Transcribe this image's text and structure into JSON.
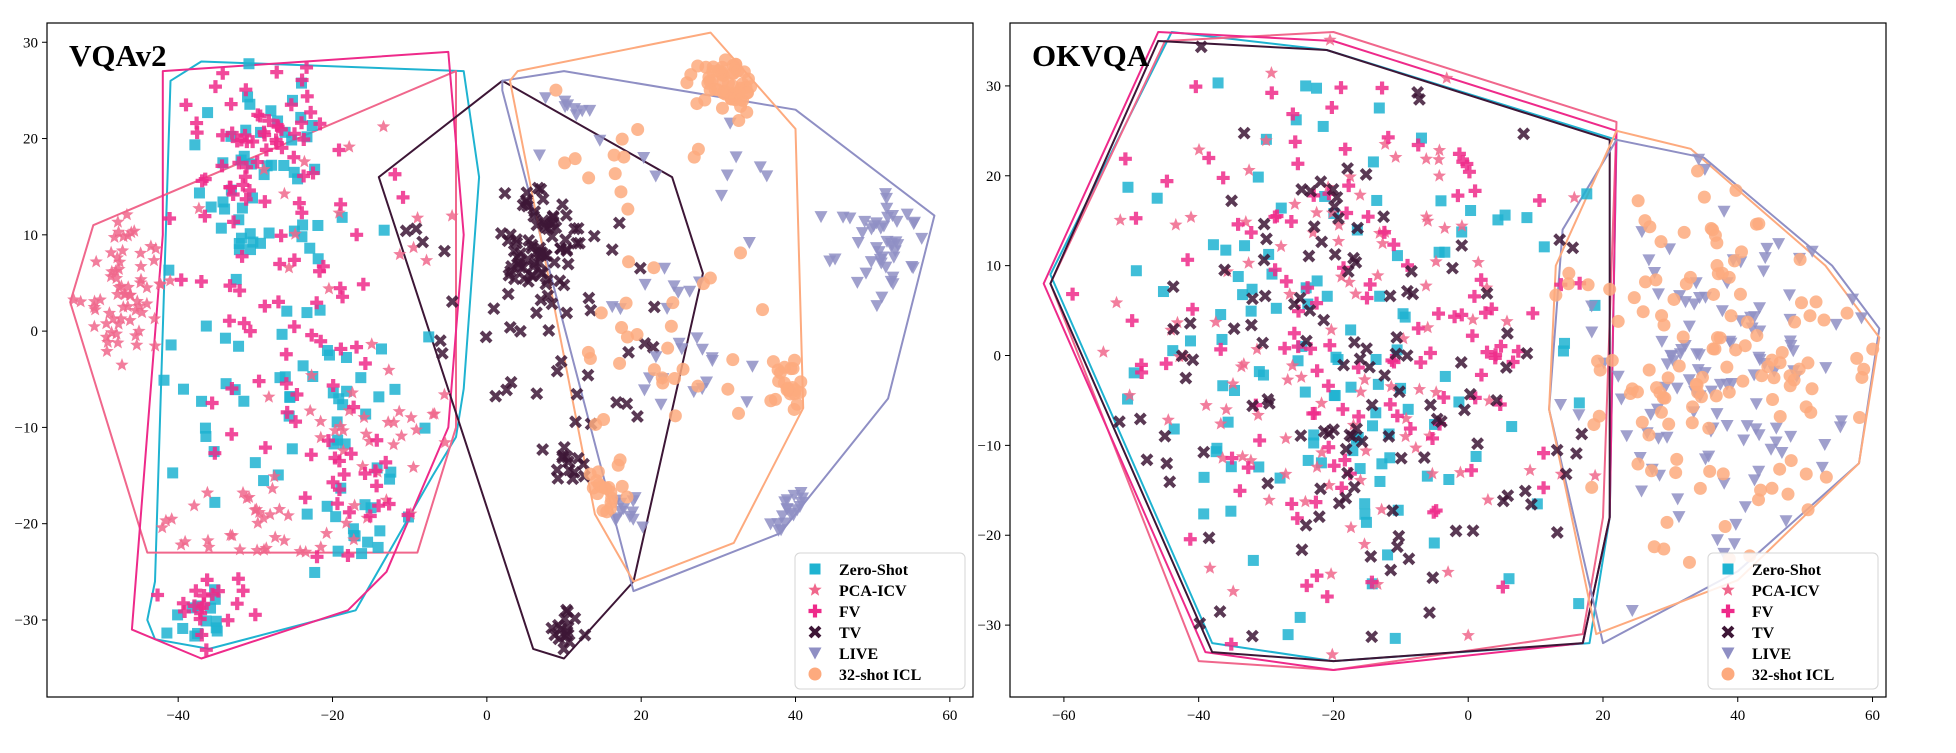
{
  "series_styles": [
    {
      "key": "zs",
      "color": "#1FB3D1",
      "marker": "square"
    },
    {
      "key": "pca",
      "color": "#F0678C",
      "marker": "star"
    },
    {
      "key": "fv",
      "color": "#EE2A8A",
      "marker": "plus"
    },
    {
      "key": "tv",
      "color": "#3D1636",
      "marker": "x"
    },
    {
      "key": "live",
      "color": "#8F8FC4",
      "marker": "triangle-down"
    },
    {
      "key": "icl",
      "color": "#FDAA7E",
      "marker": "circle"
    }
  ],
  "chart_data": [
    {
      "type": "scatter",
      "title": "VQAv2",
      "xlim": [
        -57,
        63
      ],
      "ylim": [
        -38,
        32
      ],
      "xticks": [
        -40,
        -20,
        0,
        20,
        40,
        60
      ],
      "yticks": [
        -30,
        -20,
        -10,
        0,
        10,
        20,
        30
      ],
      "legend_position": "bottom-right",
      "series": [
        {
          "name": "Zero-Shot",
          "hull": [
            [
              -41,
              26
            ],
            [
              -37,
              28
            ],
            [
              -3,
              27
            ],
            [
              -1,
              16
            ],
            [
              -3,
              -6
            ],
            [
              -4,
              -11
            ],
            [
              -7,
              -15
            ],
            [
              -17,
              -29
            ],
            [
              -36,
              -33
            ],
            [
              -43,
              -32
            ],
            [
              -44,
              -30
            ],
            [
              -43,
              -26
            ]
          ],
          "clusters": [
            {
              "c": [
                -28,
                15
              ],
              "r": [
                10,
                11
              ],
              "n": 55
            },
            {
              "c": [
                -25,
                -8
              ],
              "r": [
                17,
                12
              ],
              "n": 55
            },
            {
              "c": [
                -38,
                -30
              ],
              "r": [
                4,
                3
              ],
              "n": 14
            },
            {
              "c": [
                -18,
                -20
              ],
              "r": [
                6,
                4
              ],
              "n": 12
            }
          ]
        },
        {
          "name": "PCA-ICV",
          "hull": [
            [
              -51,
              11
            ],
            [
              -4,
              27
            ],
            [
              -4,
              -10
            ],
            [
              -9,
              -23
            ],
            [
              -44,
              -23
            ],
            [
              -54,
              3
            ]
          ],
          "clusters": [
            {
              "c": [
                -47,
                4
              ],
              "r": [
                6,
                7
              ],
              "n": 70
            },
            {
              "c": [
                -30,
                -20
              ],
              "r": [
                12,
                4
              ],
              "n": 35
            },
            {
              "c": [
                -14,
                -10
              ],
              "r": [
                12,
                8
              ],
              "n": 35
            },
            {
              "c": [
                -20,
                12
              ],
              "r": [
                16,
                12
              ],
              "n": 14
            }
          ]
        },
        {
          "name": "FV",
          "hull": [
            [
              -42,
              27
            ],
            [
              -5,
              29
            ],
            [
              -3,
              10
            ],
            [
              -5,
              -10
            ],
            [
              -13,
              -25
            ],
            [
              -18,
              -29
            ],
            [
              -37,
              -34
            ],
            [
              -46,
              -31
            ],
            [
              -42,
              10
            ]
          ],
          "clusters": [
            {
              "c": [
                -30,
                20
              ],
              "r": [
                8,
                8
              ],
              "n": 50
            },
            {
              "c": [
                -25,
                0
              ],
              "r": [
                14,
                16
              ],
              "n": 55
            },
            {
              "c": [
                -17,
                -17
              ],
              "r": [
                6,
                5
              ],
              "n": 18
            },
            {
              "c": [
                -36,
                -29
              ],
              "r": [
                5,
                4
              ],
              "n": 20
            }
          ]
        },
        {
          "name": "TV",
          "hull": [
            [
              2,
              26
            ],
            [
              24,
              16
            ],
            [
              28,
              6
            ],
            [
              19,
              -26
            ],
            [
              10,
              -34
            ],
            [
              6,
              -33
            ],
            [
              -14,
              16
            ]
          ],
          "clusters": [
            {
              "c": [
                7,
                9
              ],
              "r": [
                5,
                6
              ],
              "n": 75
            },
            {
              "c": [
                9,
                -2
              ],
              "r": [
                14,
                12
              ],
              "n": 35
            },
            {
              "c": [
                10,
                -14
              ],
              "r": [
                2,
                2
              ],
              "n": 14
            },
            {
              "c": [
                10,
                -32
              ],
              "r": [
                3,
                2
              ],
              "n": 16
            },
            {
              "c": [
                -8,
                4
              ],
              "r": [
                6,
                10
              ],
              "n": 6
            }
          ]
        },
        {
          "name": "LIVE",
          "hull": [
            [
              2,
              26
            ],
            [
              10,
              27
            ],
            [
              40,
              23
            ],
            [
              58,
              12
            ],
            [
              52,
              -7
            ],
            [
              38,
              -21
            ],
            [
              19,
              -27
            ],
            [
              2,
              25
            ]
          ],
          "clusters": [
            {
              "c": [
                52,
                9
              ],
              "r": [
                5,
                4
              ],
              "n": 45
            },
            {
              "c": [
                40,
                -20
              ],
              "r": [
                3,
                2
              ],
              "n": 18
            },
            {
              "c": [
                25,
                -1
              ],
              "r": [
                12,
                8
              ],
              "n": 25
            },
            {
              "c": [
                17,
                -19
              ],
              "r": [
                3,
                2
              ],
              "n": 12
            },
            {
              "c": [
                10,
                23
              ],
              "r": [
                6,
                4
              ],
              "n": 10
            },
            {
              "c": [
                30,
                15
              ],
              "r": [
                12,
                6
              ],
              "n": 10
            }
          ]
        },
        {
          "name": "32-shot ICL",
          "hull": [
            [
              4,
              27
            ],
            [
              29,
              31
            ],
            [
              40,
              21
            ],
            [
              41,
              -8
            ],
            [
              32,
              -22
            ],
            [
              19,
              -26
            ],
            [
              14,
              -19
            ],
            [
              3,
              26
            ]
          ],
          "clusters": [
            {
              "c": [
                31,
                26
              ],
              "r": [
                4,
                4
              ],
              "n": 55
            },
            {
              "c": [
                39,
                -6
              ],
              "r": [
                2,
                3
              ],
              "n": 22
            },
            {
              "c": [
                15,
                -17
              ],
              "r": [
                3,
                3
              ],
              "n": 20
            },
            {
              "c": [
                25,
                -2
              ],
              "r": [
                12,
                10
              ],
              "n": 28
            },
            {
              "c": [
                15,
                17
              ],
              "r": [
                10,
                8
              ],
              "n": 14
            }
          ]
        }
      ]
    },
    {
      "type": "scatter",
      "title": "OKVQA",
      "xlim": [
        -68,
        62
      ],
      "ylim": [
        -38,
        37
      ],
      "xticks": [
        -60,
        -40,
        -20,
        0,
        20,
        40,
        60
      ],
      "yticks": [
        -30,
        -20,
        -10,
        0,
        10,
        20,
        30
      ],
      "legend_position": "bottom-right",
      "series": [
        {
          "name": "Zero-Shot",
          "hull": [
            [
              -62,
              9
            ],
            [
              -44,
              36
            ],
            [
              -21,
              34
            ],
            [
              22,
              24
            ],
            [
              21,
              -18
            ],
            [
              18,
              -32
            ],
            [
              -20,
              -34
            ],
            [
              -38,
              -32
            ]
          ],
          "clusters": [
            {
              "c": [
                -18,
                0
              ],
              "r": [
                36,
                32
              ],
              "n": 120
            }
          ]
        },
        {
          "name": "PCA-ICV",
          "hull": [
            [
              -62,
              8
            ],
            [
              -45,
              35
            ],
            [
              -20,
              36
            ],
            [
              22,
              26
            ],
            [
              20,
              -18
            ],
            [
              17,
              -31
            ],
            [
              -20,
              -35
            ],
            [
              -40,
              -34
            ]
          ],
          "clusters": [
            {
              "c": [
                -18,
                0
              ],
              "r": [
                36,
                32
              ],
              "n": 110
            }
          ]
        },
        {
          "name": "FV",
          "hull": [
            [
              -63,
              8
            ],
            [
              -46,
              36
            ],
            [
              -20,
              35
            ],
            [
              22,
              25
            ],
            [
              21,
              -18
            ],
            [
              17,
              -32
            ],
            [
              -20,
              -35
            ],
            [
              -39,
              -33
            ]
          ],
          "clusters": [
            {
              "c": [
                -18,
                0
              ],
              "r": [
                36,
                32
              ],
              "n": 120
            }
          ]
        },
        {
          "name": "TV",
          "hull": [
            [
              -62,
              8
            ],
            [
              -46,
              35
            ],
            [
              -21,
              34
            ],
            [
              21,
              24
            ],
            [
              21,
              -18
            ],
            [
              17,
              -32
            ],
            [
              -20,
              -34
            ],
            [
              -38,
              -33
            ]
          ],
          "clusters": [
            {
              "c": [
                -18,
                -2
              ],
              "r": [
                34,
                30
              ],
              "n": 130
            }
          ]
        },
        {
          "name": "LIVE",
          "hull": [
            [
              22,
              24
            ],
            [
              35,
              22
            ],
            [
              54,
              10
            ],
            [
              61,
              3
            ],
            [
              58,
              -12
            ],
            [
              40,
              -24
            ],
            [
              20,
              -32
            ],
            [
              12,
              -6
            ],
            [
              14,
              14
            ]
          ],
          "clusters": [
            {
              "c": [
                37,
                -2
              ],
              "r": [
                21,
                22
              ],
              "n": 120
            }
          ]
        },
        {
          "name": "32-shot ICL",
          "hull": [
            [
              22,
              25
            ],
            [
              33,
              23
            ],
            [
              53,
              10
            ],
            [
              61,
              2
            ],
            [
              58,
              -12
            ],
            [
              40,
              -25
            ],
            [
              19,
              -31
            ],
            [
              12,
              -6
            ],
            [
              13,
              10
            ]
          ],
          "clusters": [
            {
              "c": [
                37,
                0
              ],
              "r": [
                21,
                22
              ],
              "n": 130
            }
          ]
        }
      ]
    }
  ]
}
